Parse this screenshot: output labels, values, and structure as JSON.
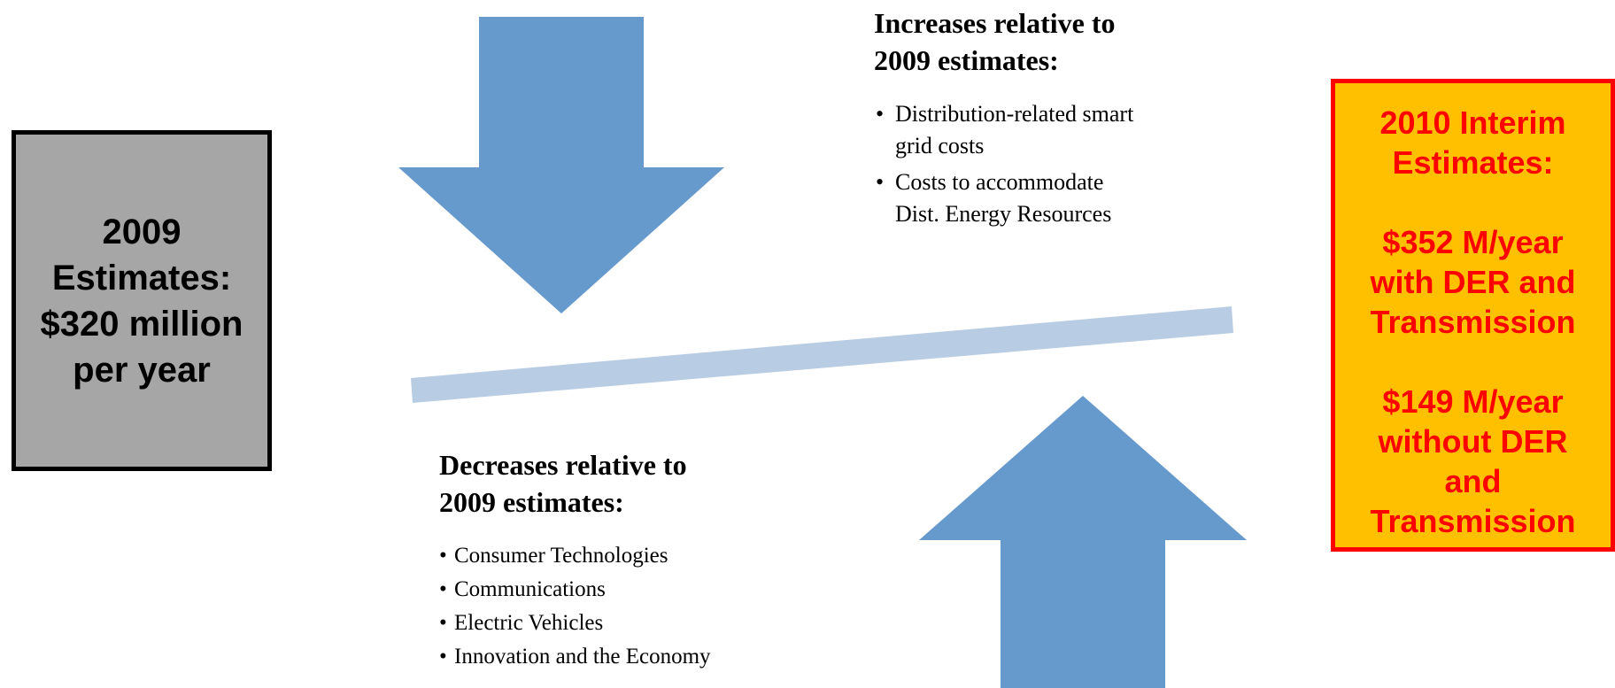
{
  "estimates_2009": {
    "lines": [
      "2009",
      "Estimates:",
      "$320 million",
      "per year"
    ]
  },
  "estimates_2010": {
    "title_lines": [
      "2010 Interim",
      "Estimates:"
    ],
    "with_der_lines": [
      "$352 M/year",
      "with DER and",
      "Transmission"
    ],
    "without_der_lines": [
      "$149 M/year",
      "without DER",
      "and",
      "Transmission"
    ]
  },
  "increases": {
    "heading_lines": [
      "Increases relative to",
      "2009 estimates:"
    ],
    "items": [
      [
        "Distribution-related smart",
        "grid costs"
      ],
      [
        "Costs to accommodate",
        "Dist. Energy Resources"
      ]
    ]
  },
  "decreases": {
    "heading_lines": [
      "Decreases relative to",
      "2009 estimates:"
    ],
    "items": [
      "Consumer Technologies",
      "Communications",
      "Electric Vehicles",
      "Innovation and the Economy"
    ]
  },
  "colors": {
    "arrow": "#6699cc",
    "beam": "#b8cce4",
    "box_2009_fill": "#a6a6a6",
    "box_2009_border": "#000000",
    "box_2010_fill": "#ffc000",
    "box_2010_border": "#ff0000",
    "box_2010_text": "#ff0000"
  },
  "icons": {
    "down_arrow": "down-arrow-icon",
    "up_arrow": "up-arrow-icon"
  }
}
